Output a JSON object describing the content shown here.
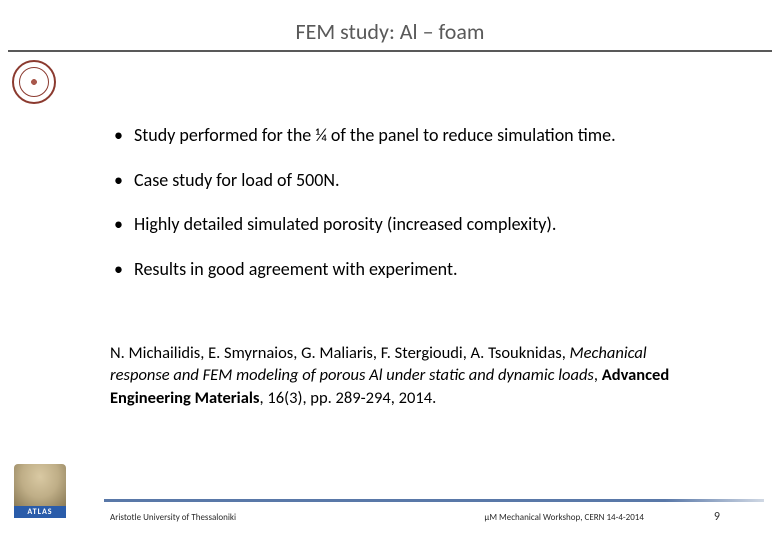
{
  "title": "FEM study: Al – foam",
  "bullets": [
    "Study performed for the ¼ of the panel to reduce simulation time.",
    "Case study for load of 500N.",
    "Highly detailed simulated porosity (increased complexity).",
    "Results in good agreement with experiment."
  ],
  "citation": {
    "authors": "N. Michailidis, E. Smyrnaios, G. Maliaris, F. Stergioudi, A. Tsouknidas, ",
    "title_italic": "Mechanical response and FEM modeling of porous Al under static and dynamic loads",
    "journal_bold": "Advanced Engineering Materials",
    "rest": ", 16(3), pp. 289-294, 2014."
  },
  "atlas_label": "ATLAS",
  "footer": {
    "affiliation": "Aristotle University of Thessaloniki",
    "event": "μM Mechanical Workshop, CERN 14-4-2014",
    "page": "9"
  },
  "colors": {
    "title_color": "#595959",
    "rule_color": "#595959",
    "logo_color": "#8b3a2f",
    "bottom_rule": "#5978a8",
    "atlas_bg": "#2a5caa"
  }
}
